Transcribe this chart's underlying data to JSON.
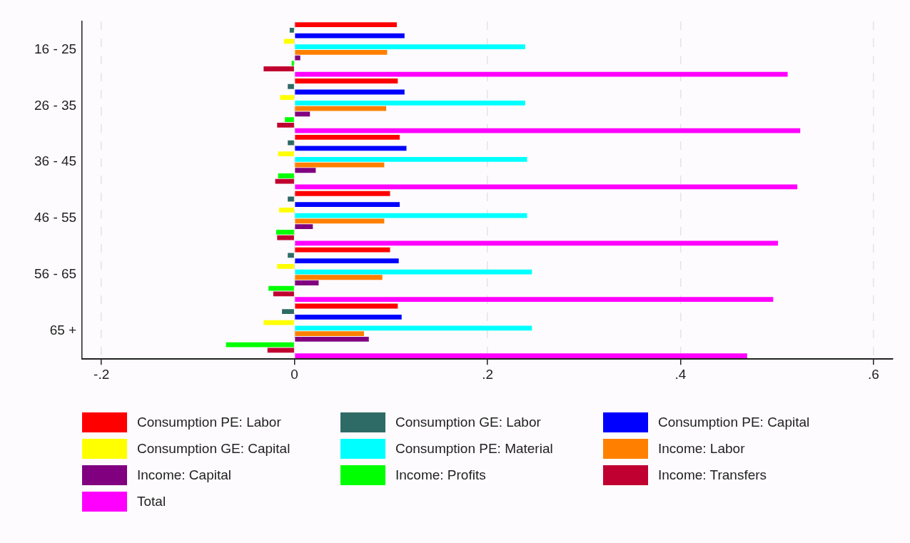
{
  "chart_data": {
    "type": "bar",
    "orientation": "horizontal",
    "categories": [
      "16 - 25",
      "26 - 35",
      "36 - 45",
      "46 - 55",
      "56 - 65",
      "65 +"
    ],
    "xlim": [
      -0.22,
      0.62
    ],
    "xticks": [
      {
        "value": -0.2,
        "label": "-.2"
      },
      {
        "value": 0,
        "label": "0"
      },
      {
        "value": 0.2,
        "label": ".2"
      },
      {
        "value": 0.4,
        "label": ".4"
      },
      {
        "value": 0.6,
        "label": ".6"
      }
    ],
    "grid": "x",
    "legend": "bottom",
    "series": [
      {
        "name": "Consumption PE: Labor",
        "color": "#ff0000",
        "values": [
          0.106,
          0.107,
          0.109,
          0.099,
          0.099,
          0.107
        ]
      },
      {
        "name": "Consumption GE: Labor",
        "color": "#2f6b66",
        "values": [
          -0.005,
          -0.007,
          -0.007,
          -0.007,
          -0.007,
          -0.013
        ]
      },
      {
        "name": "Consumption PE: Capital",
        "color": "#0000ff",
        "values": [
          0.114,
          0.114,
          0.116,
          0.109,
          0.108,
          0.111
        ]
      },
      {
        "name": "Consumption GE: Capital",
        "color": "#ffff00",
        "values": [
          -0.011,
          -0.015,
          -0.017,
          -0.016,
          -0.018,
          -0.032
        ]
      },
      {
        "name": "Consumption PE: Material",
        "color": "#00ffff",
        "values": [
          0.239,
          0.239,
          0.241,
          0.241,
          0.246,
          0.246
        ]
      },
      {
        "name": "Income: Labor",
        "color": "#ff8000",
        "values": [
          0.096,
          0.095,
          0.093,
          0.093,
          0.091,
          0.072
        ]
      },
      {
        "name": "Income: Capital",
        "color": "#800080",
        "values": [
          0.006,
          0.016,
          0.022,
          0.019,
          0.025,
          0.077
        ]
      },
      {
        "name": "Income: Profits",
        "color": "#00ff00",
        "values": [
          -0.003,
          -0.01,
          -0.017,
          -0.019,
          -0.027,
          -0.071
        ]
      },
      {
        "name": "Income: Transfers",
        "color": "#c00030",
        "values": [
          -0.032,
          -0.018,
          -0.02,
          -0.018,
          -0.022,
          -0.028
        ]
      },
      {
        "name": "Total",
        "color": "#ff00ff",
        "values": [
          0.511,
          0.524,
          0.521,
          0.501,
          0.496,
          0.469
        ]
      }
    ]
  }
}
